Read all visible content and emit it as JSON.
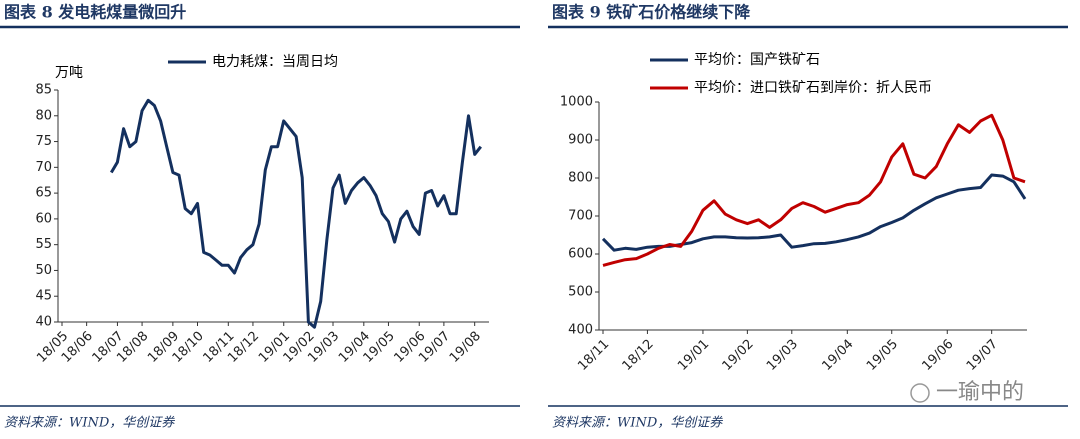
{
  "chart_data": [
    {
      "type": "line",
      "title": "图表 8  发电耗煤量微回升",
      "y_label": "万吨",
      "source": "资料来源：WIND，华创证券",
      "categories": [
        "18/05",
        null,
        null,
        null,
        "18/06",
        null,
        null,
        null,
        null,
        "18/07",
        null,
        null,
        null,
        "18/08",
        null,
        null,
        null,
        null,
        "18/09",
        null,
        null,
        null,
        "18/10",
        null,
        null,
        null,
        null,
        "18/11",
        null,
        null,
        null,
        "18/12",
        null,
        null,
        null,
        null,
        "19/01",
        null,
        null,
        null,
        "19/02",
        null,
        null,
        null,
        "19/03",
        null,
        null,
        null,
        null,
        "19/04",
        null,
        null,
        null,
        "19/05",
        null,
        null,
        null,
        null,
        "19/06",
        null,
        null,
        null,
        "19/07",
        null,
        null,
        null,
        null,
        "19/08",
        null,
        null
      ],
      "series": [
        {
          "name": "电力耗煤：当周日均",
          "color": "#14305e",
          "values": [
            null,
            null,
            null,
            null,
            null,
            null,
            null,
            null,
            69,
            71,
            77.5,
            74,
            75,
            81,
            83,
            82,
            79,
            74,
            69,
            68.5,
            62,
            61,
            63,
            53.5,
            53,
            52,
            51,
            51,
            49.5,
            52.5,
            54,
            55,
            59,
            69.5,
            74,
            74,
            79,
            77.5,
            76,
            68,
            40,
            39,
            44,
            56,
            66,
            68.5,
            63,
            65.5,
            67,
            68,
            66.5,
            64.5,
            61,
            59.5,
            55.5,
            60,
            61.5,
            58.5,
            57,
            65,
            65.5,
            62.5,
            64.5,
            61,
            61,
            71,
            80,
            72.5,
            74,
            null
          ]
        }
      ],
      "ylim": [
        40,
        85
      ],
      "yticks": [
        40,
        45,
        50,
        55,
        60,
        65,
        70,
        75,
        80,
        85
      ],
      "legend": "top"
    },
    {
      "type": "line",
      "title": "图表 9  铁矿石价格继续下降",
      "source": "资料来源：WIND，华创证券",
      "categories": [
        "18/11",
        null,
        null,
        null,
        "18/12",
        null,
        null,
        null,
        null,
        "19/01",
        null,
        null,
        null,
        "19/02",
        null,
        null,
        null,
        "19/03",
        null,
        null,
        null,
        null,
        "19/04",
        null,
        null,
        null,
        "19/05",
        null,
        null,
        null,
        null,
        "19/06",
        null,
        null,
        null,
        "19/07",
        null,
        null,
        null
      ],
      "series": [
        {
          "name": "平均价：国产铁矿石",
          "color": "#14305e",
          "values": [
            640,
            610,
            615,
            612,
            618,
            620,
            620,
            625,
            630,
            640,
            645,
            645,
            643,
            642,
            643,
            645,
            650,
            618,
            622,
            627,
            628,
            632,
            638,
            645,
            655,
            672,
            683,
            695,
            715,
            732,
            748,
            758,
            768,
            772,
            775,
            808,
            805,
            790,
            745
          ]
        },
        {
          "name": "平均价：进口铁矿石到岸价：折人民币",
          "color": "#c00000",
          "values": [
            570,
            578,
            585,
            588,
            600,
            615,
            625,
            620,
            660,
            715,
            740,
            705,
            690,
            680,
            690,
            670,
            690,
            720,
            735,
            725,
            710,
            720,
            730,
            735,
            755,
            790,
            855,
            890,
            810,
            800,
            830,
            890,
            940,
            920,
            950,
            965,
            900,
            800,
            790
          ]
        }
      ],
      "ylim": [
        400,
        1000
      ],
      "yticks": [
        400,
        500,
        600,
        700,
        800,
        900,
        1000
      ],
      "legend": "top"
    }
  ],
  "watermark": "一瑜中的"
}
